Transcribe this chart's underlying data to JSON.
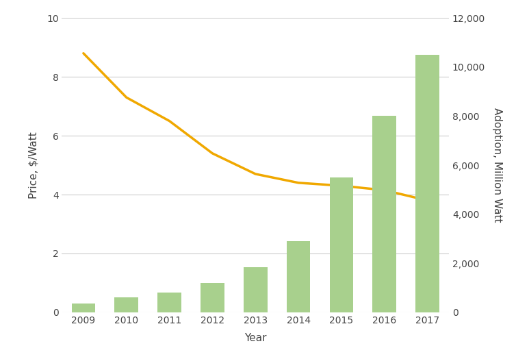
{
  "years": [
    2009,
    2010,
    2011,
    2012,
    2013,
    2014,
    2015,
    2016,
    2017
  ],
  "adoption_mw": [
    350,
    600,
    800,
    1200,
    1850,
    2900,
    5500,
    8000,
    10500
  ],
  "price_per_watt": [
    8.8,
    7.3,
    6.5,
    5.4,
    4.7,
    4.4,
    4.3,
    4.15,
    3.8
  ],
  "bar_color": "#a8d08d",
  "line_color": "#f0a800",
  "xlabel": "Year",
  "ylabel_left": "Price, $/Watt",
  "ylabel_right": "Adoption, Million Watt",
  "ylim_left": [
    0,
    10
  ],
  "ylim_right": [
    0,
    12000
  ],
  "yticks_left": [
    0,
    2,
    4,
    6,
    8,
    10
  ],
  "yticks_right": [
    0,
    2000,
    4000,
    6000,
    8000,
    10000,
    12000
  ],
  "background_color": "#ffffff",
  "grid_color": "#cccccc",
  "line_width": 2.5,
  "bar_width": 0.55
}
